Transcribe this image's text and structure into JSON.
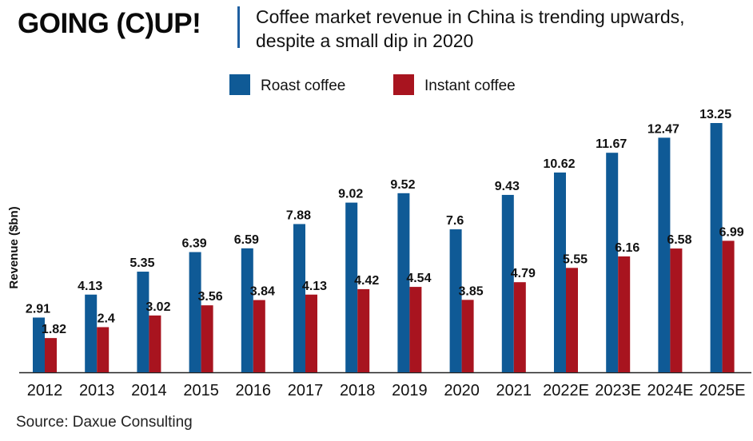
{
  "header": {
    "brand": "GOING (C)UP!",
    "subtitle": "Coffee market revenue in China is trending upwards, despite a small dip in 2020"
  },
  "source": "Source: Daxue Consulting",
  "colors": {
    "roast": "#0f5a96",
    "instant": "#a8141f",
    "divider": "#1f5fa0"
  },
  "chart_data": {
    "type": "bar",
    "title": "",
    "xlabel": "",
    "ylabel": "Revenue ($bn)",
    "ylim": [
      0,
      13.25
    ],
    "legend_position": "top",
    "grid": false,
    "categories": [
      "2012",
      "2013",
      "2014",
      "2015",
      "2016",
      "2017",
      "2018",
      "2019",
      "2020",
      "2021",
      "2022E",
      "2023E",
      "2024E",
      "2025E"
    ],
    "series": [
      {
        "name": "Roast coffee",
        "color": "#0f5a96",
        "values": [
          2.91,
          4.13,
          5.35,
          6.39,
          6.59,
          7.88,
          9.02,
          9.52,
          7.6,
          9.43,
          10.62,
          11.67,
          12.47,
          13.25
        ]
      },
      {
        "name": "Instant coffee",
        "color": "#a8141f",
        "values": [
          1.82,
          2.4,
          3.02,
          3.56,
          3.84,
          4.13,
          4.42,
          4.54,
          3.85,
          4.79,
          5.55,
          6.16,
          6.58,
          6.99
        ]
      }
    ]
  }
}
